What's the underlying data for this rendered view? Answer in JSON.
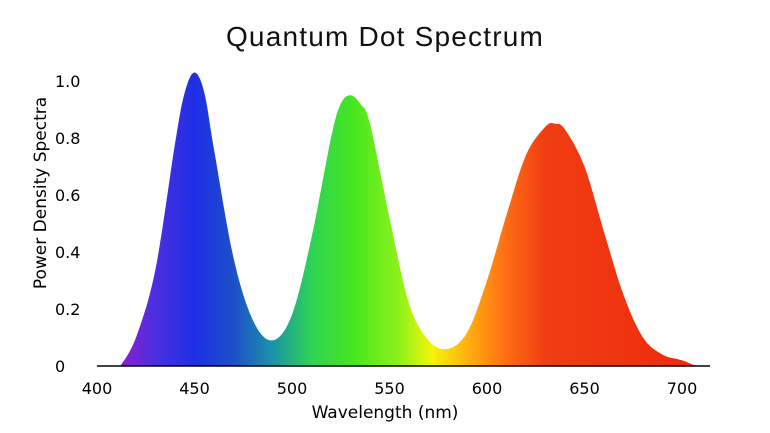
{
  "chart_data": {
    "type": "area",
    "title": "Quantum Dot Spectrum",
    "xlabel": "Wavelength (nm)",
    "ylabel": "Power Density Spectra",
    "xlim": [
      400,
      710
    ],
    "ylim": [
      0,
      1.0
    ],
    "x_ticks": [
      400,
      450,
      500,
      550,
      600,
      650,
      700
    ],
    "x_tick_labels": [
      "400",
      "450",
      "500",
      "550",
      "600",
      "650",
      "700"
    ],
    "y_ticks": [
      0,
      0.2,
      0.4,
      0.6,
      0.8,
      1.0
    ],
    "y_tick_labels": [
      "0",
      "0.2",
      "0.4",
      "0.6",
      "0.8",
      "1.0"
    ],
    "grid": false,
    "legend": "none",
    "series": [
      {
        "x": [
          412,
          420,
          430,
          440,
          445,
          450,
          455,
          460,
          470,
          480,
          490,
          500,
          510,
          520,
          525,
          530,
          535,
          540,
          550,
          560,
          570,
          580,
          590,
          600,
          610,
          620,
          630,
          635,
          640,
          650,
          660,
          670,
          680,
          690,
          700,
          707
        ],
        "values": [
          0.0,
          0.1,
          0.34,
          0.78,
          0.96,
          1.03,
          0.96,
          0.76,
          0.38,
          0.16,
          0.09,
          0.18,
          0.45,
          0.8,
          0.92,
          0.95,
          0.92,
          0.85,
          0.52,
          0.22,
          0.09,
          0.06,
          0.12,
          0.3,
          0.53,
          0.74,
          0.84,
          0.85,
          0.83,
          0.7,
          0.47,
          0.25,
          0.1,
          0.04,
          0.02,
          0.0
        ]
      }
    ],
    "peaks": [
      {
        "wavelength": 450,
        "value": 1.03,
        "color": "#1e2fe6"
      },
      {
        "wavelength": 531,
        "value": 0.95,
        "color": "#45e61e"
      },
      {
        "wavelength": 635,
        "value": 0.85,
        "color": "#ee3311"
      }
    ],
    "fill_gradient": [
      {
        "wavelength": 412,
        "color": "#8a1fd0"
      },
      {
        "wavelength": 430,
        "color": "#4a2fe0"
      },
      {
        "wavelength": 450,
        "color": "#1e2fe6"
      },
      {
        "wavelength": 470,
        "color": "#1d4fc8"
      },
      {
        "wavelength": 490,
        "color": "#1b93a8"
      },
      {
        "wavelength": 510,
        "color": "#2ed455"
      },
      {
        "wavelength": 531,
        "color": "#45e61e"
      },
      {
        "wavelength": 555,
        "color": "#8ef21b"
      },
      {
        "wavelength": 572,
        "color": "#f5f507"
      },
      {
        "wavelength": 590,
        "color": "#ffb010"
      },
      {
        "wavelength": 610,
        "color": "#ff6c14"
      },
      {
        "wavelength": 630,
        "color": "#f03d12"
      },
      {
        "wavelength": 707,
        "color": "#ee2a0e"
      }
    ]
  }
}
